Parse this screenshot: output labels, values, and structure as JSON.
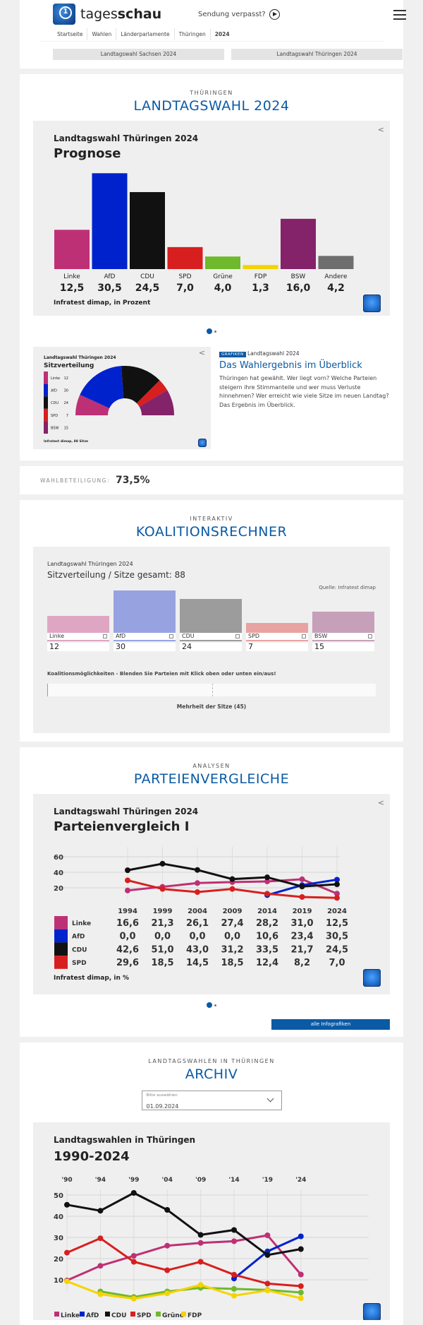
{
  "header": {
    "brand_a": "tages",
    "brand_b": "schau",
    "missed": "Sendung verpasst?",
    "breadcrumb": [
      "Startseite",
      "Wahlen",
      "Länderparlamente",
      "Thüringen",
      "2024"
    ],
    "tabs": [
      "Landtagswahl Sachsen 2024",
      "Landtagswahl Thüringen 2024"
    ]
  },
  "s1": {
    "kicker": "THÜRINGEN",
    "title": "LANDTAGSWAHL 2024"
  },
  "prognose": {
    "subtitle": "Landtagswahl Thüringen 2024",
    "title": "Prognose",
    "source": "Infratest dimap, in Prozent",
    "chart_data": {
      "type": "bar",
      "categories": [
        "Linke",
        "AfD",
        "CDU",
        "SPD",
        "Grüne",
        "FDP",
        "BSW",
        "Andere"
      ],
      "values": [
        12.5,
        30.5,
        24.5,
        7.0,
        4.0,
        1.3,
        16.0,
        4.2
      ],
      "labels": [
        "12,5",
        "30,5",
        "24,5",
        "7,0",
        "4,0",
        "1,3",
        "16,0",
        "4,2"
      ],
      "colors": [
        "#be3075",
        "#0022cc",
        "#111111",
        "#d71f1f",
        "#6fb92c",
        "#f5d300",
        "#84226a",
        "#6e6e6e"
      ]
    }
  },
  "teaser": {
    "img_subtitle": "Landtagswahl Thüringen 2024",
    "img_title": "Sitzverteilung",
    "img_source": "Infratest dimap, 88 Sitze",
    "seats": {
      "type": "pie",
      "parties": [
        "Linke",
        "AfD",
        "CDU",
        "SPD",
        "BSW"
      ],
      "values": [
        12,
        30,
        24,
        7,
        15
      ],
      "colors": [
        "#be3075",
        "#0022cc",
        "#111111",
        "#d71f1f",
        "#84226a"
      ]
    },
    "badge": "GRAFIKEN",
    "topline": "Landtagswahl 2024",
    "headline": "Das Wahlergebnis im Überblick",
    "text": "Thüringen hat gewählt. Wer liegt vorn? Welche Parteien steigern ihre Stimmanteile und wer muss Verluste hinnehmen? Wer erreicht wie viele Sitze im neuen Landtag? Das Ergebnis im Überblick."
  },
  "turnout": {
    "label": "WAHLBETEILIGUNG:",
    "value": "73,5%"
  },
  "s2": {
    "kicker": "INTERAKTIV",
    "title": "KOALITIONSRECHNER"
  },
  "koalition": {
    "subtitle": "Landtagswahl Thüringen 2024",
    "title": "Sitzverteilung / Sitze gesamt: 88",
    "source": "Quelle: Infratest dimap",
    "hint": "Koalitionsmöglichkeiten - Blenden Sie Parteien mit Klick oben oder unten ein/aus!",
    "majority": "Mehrheit der Sitze (45)",
    "chart_data": {
      "type": "bar",
      "categories": [
        "Linke",
        "AfD",
        "CDU",
        "SPD",
        "BSW"
      ],
      "values": [
        12,
        30,
        24,
        7,
        15
      ],
      "colors": [
        "#dfa6c3",
        "#97a3e1",
        "#9c9c9c",
        "#e8a2a2",
        "#c6a0b9"
      ]
    }
  },
  "s3": {
    "kicker": "ANALYSEN",
    "title": "PARTEIENVERGLEICHE",
    "more": "alle Infografiken"
  },
  "vergleich": {
    "subtitle": "Landtagswahl Thüringen 2024",
    "title": "Parteienvergleich I",
    "source": "Infratest dimap, in %",
    "chart_data": {
      "type": "line",
      "x": [
        "1994",
        "1999",
        "2004",
        "2009",
        "2014",
        "2019",
        "2024"
      ],
      "yticks": [
        "60",
        "40",
        "20"
      ],
      "ylim": [
        0,
        70
      ],
      "series": [
        {
          "name": "Linke",
          "color": "#be3075",
          "values": [
            16.6,
            21.3,
            26.1,
            27.4,
            28.2,
            31.0,
            12.5
          ],
          "labels": [
            "16,6",
            "21,3",
            "26,1",
            "27,4",
            "28,2",
            "31,0",
            "12,5"
          ]
        },
        {
          "name": "AfD",
          "color": "#0022cc",
          "values": [
            0,
            0,
            0,
            0,
            10.6,
            23.4,
            30.5
          ],
          "labels": [
            "0,0",
            "0,0",
            "0,0",
            "0,0",
            "10,6",
            "23,4",
            "30,5"
          ]
        },
        {
          "name": "CDU",
          "color": "#111111",
          "values": [
            42.6,
            51.0,
            43.0,
            31.2,
            33.5,
            21.7,
            24.5
          ],
          "labels": [
            "42,6",
            "51,0",
            "43,0",
            "31,2",
            "33,5",
            "21,7",
            "24,5"
          ]
        },
        {
          "name": "SPD",
          "color": "#d71f1f",
          "values": [
            29.6,
            18.5,
            14.5,
            18.5,
            12.4,
            8.2,
            7.0
          ],
          "labels": [
            "29,6",
            "18,5",
            "14,5",
            "18,5",
            "12,4",
            "8,2",
            "7,0"
          ]
        }
      ]
    }
  },
  "s4": {
    "kicker": "LANDTAGSWAHLEN IN THÜRINGEN",
    "title": "ARCHIV",
    "select_label": "Bitte auswählen",
    "select_value": "01.09.2024"
  },
  "archiv": {
    "subtitle": "Landtagswahlen in Thüringen",
    "title": "1990-2024",
    "chart_data": {
      "type": "line",
      "x": [
        "'90",
        "'94",
        "'99",
        "'04",
        "'09",
        "'14",
        "'19",
        "'24"
      ],
      "yticks": [
        "50",
        "40",
        "30",
        "20",
        "10"
      ],
      "ylim": [
        0,
        55
      ],
      "series": [
        {
          "name": "Linke",
          "color": "#be3075",
          "values": [
            9.7,
            16.6,
            21.3,
            26.1,
            27.4,
            28.2,
            31.0,
            12.5
          ]
        },
        {
          "name": "AfD",
          "color": "#0022cc",
          "values": [
            null,
            null,
            null,
            null,
            null,
            10.6,
            23.4,
            30.5
          ]
        },
        {
          "name": "CDU",
          "color": "#111111",
          "values": [
            45.4,
            42.6,
            51.0,
            43.0,
            31.2,
            33.5,
            21.7,
            24.5
          ]
        },
        {
          "name": "SPD",
          "color": "#d71f1f",
          "values": [
            22.8,
            29.6,
            18.5,
            14.5,
            18.5,
            12.4,
            8.2,
            7.0
          ]
        },
        {
          "name": "Grüne",
          "color": "#6fb92c",
          "values": [
            null,
            4.5,
            1.9,
            4.5,
            6.2,
            5.7,
            5.2,
            4.0
          ]
        },
        {
          "name": "FDP",
          "color": "#f5d300",
          "values": [
            9.3,
            3.2,
            1.1,
            3.6,
            7.6,
            2.5,
            5.0,
            1.3
          ]
        }
      ]
    }
  }
}
